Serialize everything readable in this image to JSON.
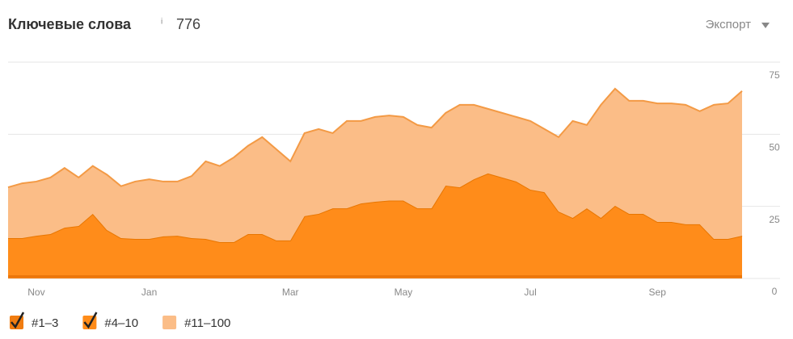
{
  "header": {
    "title": "Ключевые слова",
    "info": "i",
    "count": "776",
    "export": "Экспорт"
  },
  "chart_data": {
    "type": "stacked-area",
    "categories": [
      null,
      null,
      "Nov",
      null,
      null,
      null,
      null,
      null,
      null,
      null,
      "Jan",
      null,
      null,
      null,
      null,
      null,
      null,
      null,
      null,
      null,
      "Mar",
      null,
      null,
      null,
      null,
      null,
      null,
      null,
      "May",
      null,
      null,
      null,
      null,
      null,
      null,
      null,
      null,
      "Jul",
      null,
      null,
      null,
      null,
      null,
      null,
      null,
      null,
      "Sep",
      null,
      null,
      null,
      null,
      null,
      null
    ],
    "series": [
      {
        "name": "#1–3",
        "color": "#f07c10",
        "line": "#e06a00",
        "checked": true,
        "values": [
          1,
          1,
          1,
          1,
          1,
          1,
          1,
          1,
          1,
          1,
          1,
          1,
          1,
          1,
          1,
          1,
          1,
          1,
          1,
          1,
          1,
          1,
          1,
          1,
          1,
          1,
          1,
          1,
          1,
          1,
          1,
          1,
          1,
          1,
          1,
          1,
          1,
          1,
          1,
          1,
          1,
          1,
          1,
          1,
          1,
          1,
          1,
          1,
          1,
          1,
          1,
          1,
          1
        ]
      },
      {
        "name": "#4–10",
        "color": "#ff8c1a",
        "line": "#e87600",
        "checked": true,
        "values": [
          13,
          13,
          13.8,
          14.4,
          16.6,
          17.2,
          21.4,
          15.8,
          13,
          12.7,
          12.7,
          13.6,
          13.8,
          13,
          12.7,
          11.6,
          11.6,
          14.4,
          14.4,
          12.2,
          12.2,
          20.6,
          21.4,
          23.3,
          23.3,
          25,
          25.6,
          26,
          26,
          23.3,
          23.3,
          31.2,
          30.6,
          33.4,
          35.4,
          34,
          32.6,
          29.8,
          28.9,
          22.2,
          20,
          23.3,
          20,
          24.2,
          21.4,
          21.4,
          18.6,
          18.6,
          17.8,
          17.8,
          12.7,
          12.7,
          13.8
        ]
      },
      {
        "name": "#11–100",
        "color": "#fbbd87",
        "line": "#f39a45",
        "checked": false,
        "values": [
          17.6,
          19,
          18.8,
          19.6,
          20.7,
          16.8,
          16.6,
          19.2,
          18,
          19.9,
          20.7,
          19,
          18.8,
          21.5,
          26.9,
          26.4,
          29.4,
          30.6,
          33.6,
          31.6,
          27.4,
          28.8,
          29.4,
          26.1,
          30.3,
          28.6,
          29.4,
          29.5,
          29,
          28.9,
          28,
          25.2,
          28.6,
          25.8,
          22.4,
          22.4,
          22.4,
          23.8,
          21.9,
          25.8,
          33.6,
          28.9,
          39.2,
          40.6,
          39.2,
          39.2,
          41.1,
          41.1,
          41.4,
          39.2,
          46.5,
          47,
          50.2
        ]
      }
    ],
    "ylim": [
      0,
      75
    ],
    "yticks": [
      0,
      25,
      50,
      75
    ],
    "grid": true
  }
}
